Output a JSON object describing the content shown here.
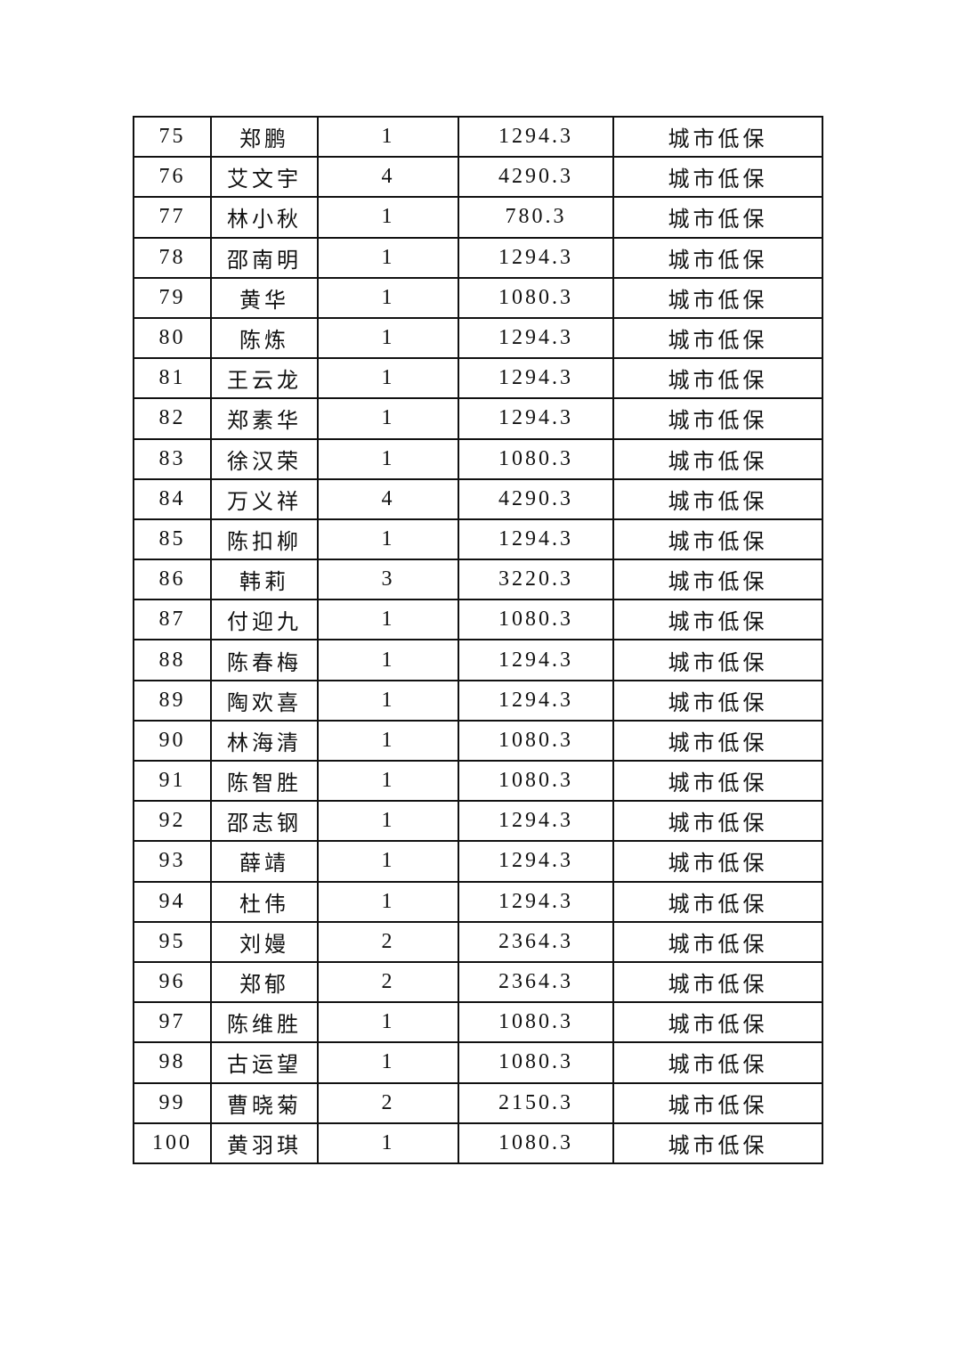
{
  "table": {
    "rows": [
      {
        "no": "75",
        "name": "郑鹏",
        "members": "1",
        "amount": "1294.3",
        "type": "城市低保"
      },
      {
        "no": "76",
        "name": "艾文宇",
        "members": "4",
        "amount": "4290.3",
        "type": "城市低保"
      },
      {
        "no": "77",
        "name": "林小秋",
        "members": "1",
        "amount": "780.3",
        "type": "城市低保"
      },
      {
        "no": "78",
        "name": "邵南明",
        "members": "1",
        "amount": "1294.3",
        "type": "城市低保"
      },
      {
        "no": "79",
        "name": "黄华",
        "members": "1",
        "amount": "1080.3",
        "type": "城市低保"
      },
      {
        "no": "80",
        "name": "陈炼",
        "members": "1",
        "amount": "1294.3",
        "type": "城市低保"
      },
      {
        "no": "81",
        "name": "王云龙",
        "members": "1",
        "amount": "1294.3",
        "type": "城市低保"
      },
      {
        "no": "82",
        "name": "郑素华",
        "members": "1",
        "amount": "1294.3",
        "type": "城市低保"
      },
      {
        "no": "83",
        "name": "徐汉荣",
        "members": "1",
        "amount": "1080.3",
        "type": "城市低保"
      },
      {
        "no": "84",
        "name": "万义祥",
        "members": "4",
        "amount": "4290.3",
        "type": "城市低保"
      },
      {
        "no": "85",
        "name": "陈扣柳",
        "members": "1",
        "amount": "1294.3",
        "type": "城市低保"
      },
      {
        "no": "86",
        "name": "韩莉",
        "members": "3",
        "amount": "3220.3",
        "type": "城市低保"
      },
      {
        "no": "87",
        "name": "付迎九",
        "members": "1",
        "amount": "1080.3",
        "type": "城市低保"
      },
      {
        "no": "88",
        "name": "陈春梅",
        "members": "1",
        "amount": "1294.3",
        "type": "城市低保"
      },
      {
        "no": "89",
        "name": "陶欢喜",
        "members": "1",
        "amount": "1294.3",
        "type": "城市低保"
      },
      {
        "no": "90",
        "name": "林海清",
        "members": "1",
        "amount": "1080.3",
        "type": "城市低保"
      },
      {
        "no": "91",
        "name": "陈智胜",
        "members": "1",
        "amount": "1080.3",
        "type": "城市低保"
      },
      {
        "no": "92",
        "name": "邵志钢",
        "members": "1",
        "amount": "1294.3",
        "type": "城市低保"
      },
      {
        "no": "93",
        "name": "薛靖",
        "members": "1",
        "amount": "1294.3",
        "type": "城市低保"
      },
      {
        "no": "94",
        "name": "杜伟",
        "members": "1",
        "amount": "1294.3",
        "type": "城市低保"
      },
      {
        "no": "95",
        "name": "刘嫚",
        "members": "2",
        "amount": "2364.3",
        "type": "城市低保"
      },
      {
        "no": "96",
        "name": "郑郁",
        "members": "2",
        "amount": "2364.3",
        "type": "城市低保"
      },
      {
        "no": "97",
        "name": "陈维胜",
        "members": "1",
        "amount": "1080.3",
        "type": "城市低保"
      },
      {
        "no": "98",
        "name": "古运望",
        "members": "1",
        "amount": "1080.3",
        "type": "城市低保"
      },
      {
        "no": "99",
        "name": "曹晓菊",
        "members": "2",
        "amount": "2150.3",
        "type": "城市低保"
      },
      {
        "no": "100",
        "name": "黄羽琪",
        "members": "1",
        "amount": "1080.3",
        "type": "城市低保"
      }
    ]
  }
}
